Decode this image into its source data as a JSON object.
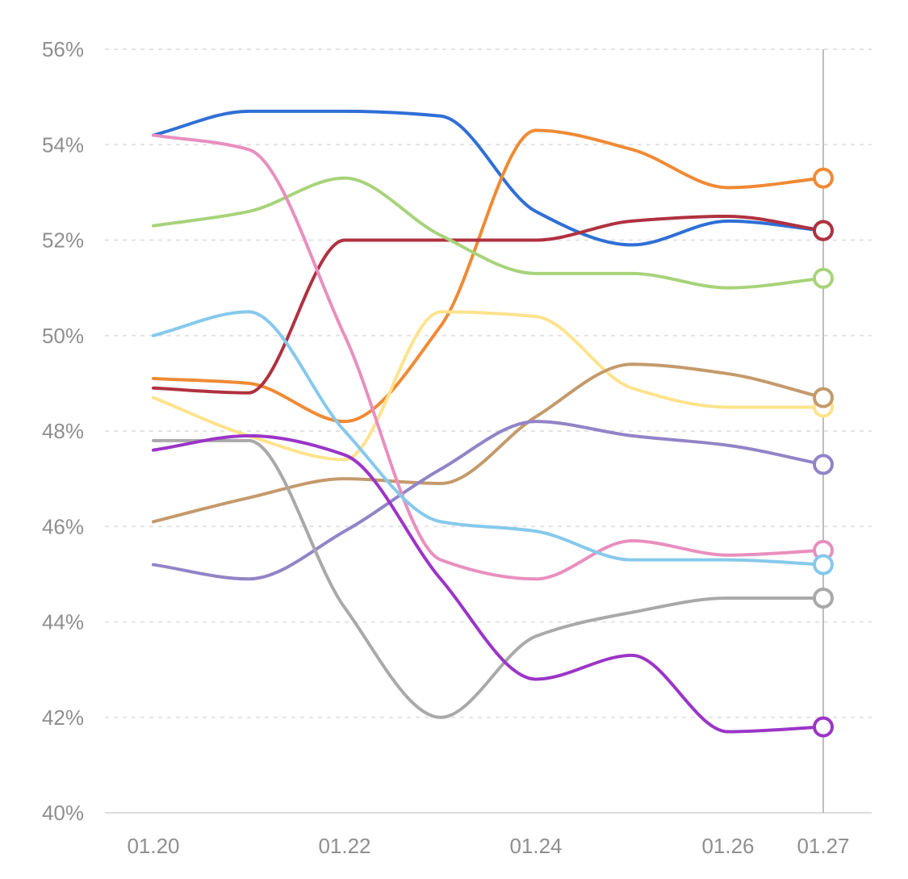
{
  "chart_data": {
    "type": "line",
    "x": [
      "01.20",
      "01.21",
      "01.22",
      "01.23",
      "01.24",
      "01.25",
      "01.26",
      "01.27"
    ],
    "x_ticks": [
      "01.20",
      "01.22",
      "01.24",
      "01.26",
      "01.27"
    ],
    "y_ticks": [
      "40%",
      "42%",
      "44%",
      "46%",
      "48%",
      "50%",
      "52%",
      "54%",
      "56%"
    ],
    "ylim": [
      40,
      56
    ],
    "y_unit": "%",
    "grid": true,
    "highlighted_x": "01.27",
    "series": [
      {
        "color": "#2f6fd6",
        "values": [
          54.2,
          54.7,
          54.7,
          54.6,
          52.6,
          51.9,
          52.4,
          52.2
        ]
      },
      {
        "color": "#f08a34",
        "values": [
          49.1,
          49.0,
          48.2,
          50.2,
          54.3,
          53.9,
          53.1,
          53.3
        ]
      },
      {
        "color": "#b03140",
        "values": [
          48.9,
          48.8,
          52.0,
          52.0,
          52.0,
          52.4,
          52.5,
          52.2
        ]
      },
      {
        "color": "#a8d37a",
        "values": [
          52.3,
          52.6,
          53.3,
          52.1,
          51.3,
          51.3,
          51.0,
          51.2
        ]
      },
      {
        "color": "#fde38c",
        "values": [
          48.7,
          47.9,
          47.4,
          50.5,
          50.4,
          48.9,
          48.5,
          48.5
        ]
      },
      {
        "color": "#c49a6c",
        "values": [
          46.1,
          46.6,
          47.0,
          46.9,
          48.3,
          49.4,
          49.2,
          48.7
        ]
      },
      {
        "color": "#9284c7",
        "values": [
          45.2,
          44.9,
          45.9,
          47.2,
          48.2,
          47.9,
          47.7,
          47.3
        ]
      },
      {
        "color": "#e88fbe",
        "values": [
          54.2,
          53.9,
          50.0,
          45.3,
          44.9,
          45.7,
          45.4,
          45.5
        ]
      },
      {
        "color": "#86c9ec",
        "values": [
          50.0,
          50.5,
          48.0,
          46.1,
          45.9,
          45.3,
          45.3,
          45.2
        ]
      },
      {
        "color": "#a9a9a9",
        "values": [
          47.8,
          47.8,
          44.3,
          42.0,
          43.7,
          44.2,
          44.5,
          44.5
        ]
      },
      {
        "color": "#9b35c7",
        "values": [
          47.6,
          47.9,
          47.5,
          44.9,
          42.8,
          43.3,
          41.7,
          41.8
        ]
      }
    ]
  }
}
